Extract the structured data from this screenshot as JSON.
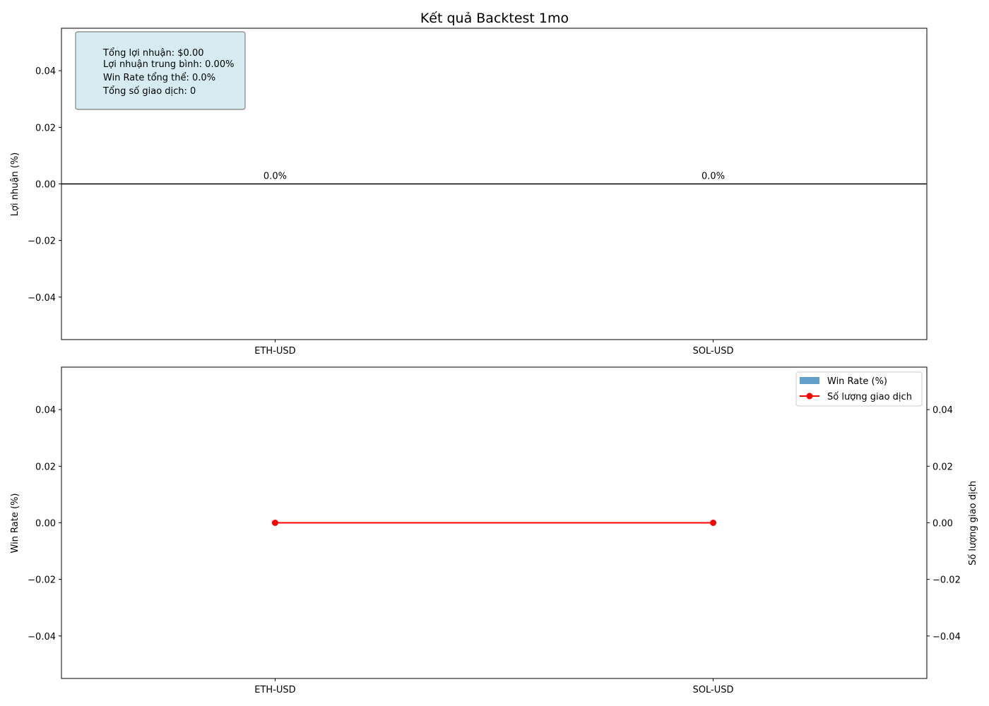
{
  "figure": {
    "title": "Kết quả Backtest 1mo"
  },
  "summary": {
    "total_profit": "Tổng lợi nhuận: $0.00",
    "avg_profit": "Lợi nhuận trung bình: 0.00%",
    "overall_win_rate": "Win Rate tổng thể: 0.0%",
    "total_trades": "Tổng số giao dịch: 0"
  },
  "colors": {
    "profit_bar": "#1f77b4",
    "win_rate_bar": "#1f77b4",
    "trade_count_line": "#ff0000",
    "summary_box_fill": "#add8e6",
    "summary_box_edge": "#808080"
  },
  "chart_data": [
    {
      "type": "bar",
      "categories": [
        "ETH-USD",
        "SOL-USD"
      ],
      "values": [
        0.0,
        0.0
      ],
      "data_labels": [
        "0.0%",
        "0.0%"
      ],
      "title": "Kết quả Backtest 1mo",
      "xlabel": "",
      "ylabel": "Lợi nhuận (%)",
      "ylim": [
        -0.055,
        0.055
      ],
      "yticks": [
        "0.04",
        "0.02",
        "0.00",
        "−0.02",
        "−0.04"
      ],
      "ytick_values": [
        0.04,
        0.02,
        0.0,
        -0.02,
        -0.04
      ],
      "grid": false,
      "zero_line": true
    },
    {
      "type": "bar",
      "categories": [
        "ETH-USD",
        "SOL-USD"
      ],
      "series": [
        {
          "name": "Win Rate (%)",
          "type": "bar",
          "values": [
            0.0,
            0.0
          ],
          "axis": "left"
        },
        {
          "name": "Số lượng giao dịch",
          "type": "line",
          "values": [
            0,
            0
          ],
          "axis": "right",
          "marker": "circle"
        }
      ],
      "xlabel": "",
      "ylabel": "Win Rate (%)",
      "ylabel_right": "Số lượng giao dịch",
      "ylim": [
        -0.055,
        0.055
      ],
      "ylim_right": [
        -0.055,
        0.055
      ],
      "yticks": [
        "0.04",
        "0.02",
        "0.00",
        "−0.02",
        "−0.04"
      ],
      "yticks_right": [
        "0.04",
        "0.02",
        "0.00",
        "−0.02",
        "−0.04"
      ],
      "ytick_values": [
        0.04,
        0.02,
        0.0,
        -0.02,
        -0.04
      ],
      "legend_position": "top-right",
      "grid": false
    }
  ]
}
